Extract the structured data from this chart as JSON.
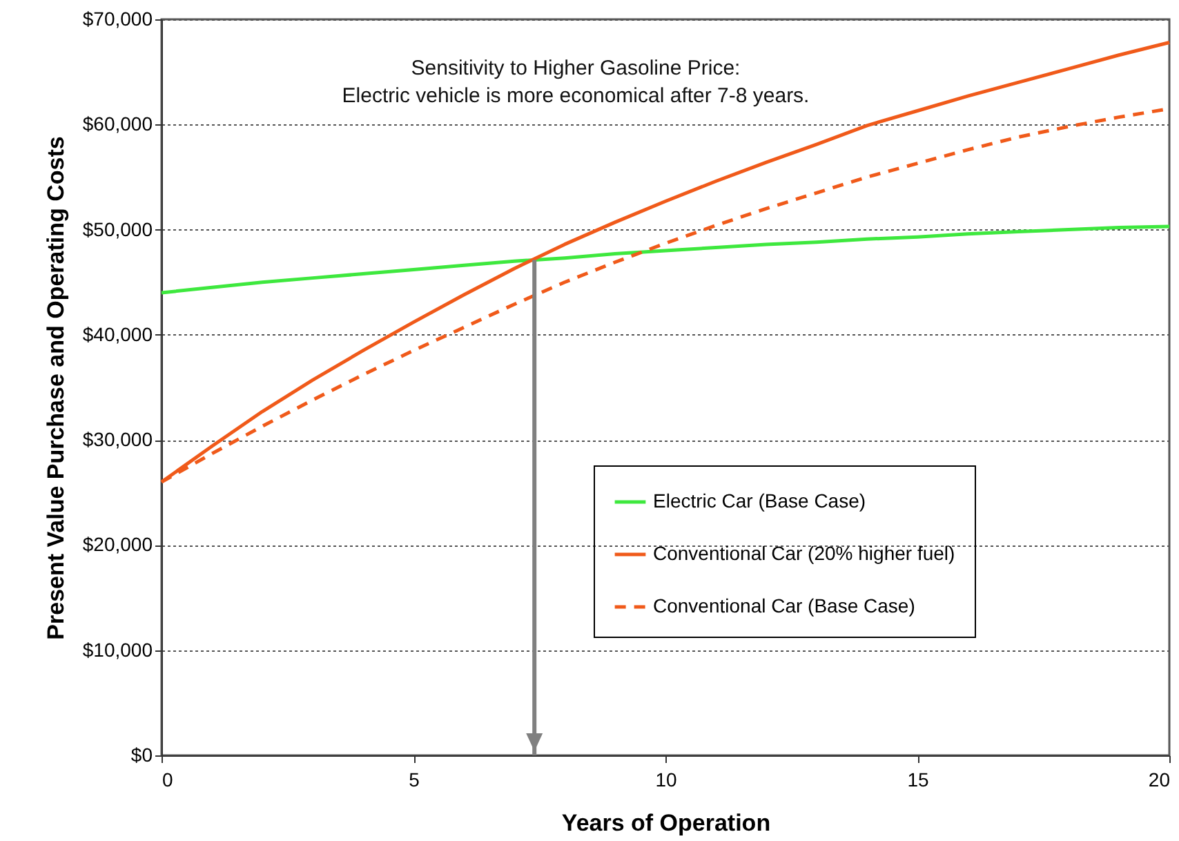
{
  "chart_data": {
    "type": "line",
    "xlabel": "Years of Operation",
    "ylabel": "Present Value Purchase and Operating Costs",
    "annotations": [
      "Sensitivity to Higher Gasoline Price:",
      "Electric vehicle is more economical after 7-8 years."
    ],
    "x": [
      0,
      1,
      2,
      3,
      4,
      5,
      6,
      7,
      8,
      9,
      10,
      11,
      12,
      13,
      14,
      15,
      16,
      17,
      18,
      19,
      20
    ],
    "series": [
      {
        "name": "Electric Car (Base Case)",
        "color": "#3ee83e",
        "line_style": "solid",
        "values": [
          44000,
          44500,
          45000,
          45400,
          45800,
          46200,
          46600,
          47000,
          47300,
          47700,
          48000,
          48300,
          48600,
          48800,
          49100,
          49300,
          49600,
          49800,
          50000,
          50200,
          50300
        ]
      },
      {
        "name": "Conventional Car (20% higher fuel)",
        "color": "#f05a1a",
        "line_style": "solid",
        "values": [
          26000,
          29400,
          32700,
          35700,
          38500,
          41200,
          43800,
          46300,
          48600,
          50700,
          52700,
          54600,
          56400,
          58100,
          59900,
          61300,
          62700,
          64000,
          65300,
          66600,
          67800
        ]
      },
      {
        "name": "Conventional Car (Base Case)",
        "color": "#f05a1a",
        "line_style": "dashed",
        "values": [
          26000,
          28700,
          31300,
          33800,
          36200,
          38500,
          40700,
          42900,
          45000,
          46900,
          48700,
          50400,
          52000,
          53500,
          55000,
          56300,
          57600,
          58800,
          59800,
          60700,
          61500
        ]
      }
    ],
    "xlim": [
      0,
      20
    ],
    "xticks": [
      0,
      5,
      10,
      15,
      20
    ],
    "ylim": [
      0,
      70000
    ],
    "yticks": [
      {
        "value": 0,
        "label": "$0"
      },
      {
        "value": 10000,
        "label": "$10,000"
      },
      {
        "value": 20000,
        "label": "$20,000"
      },
      {
        "value": 30000,
        "label": "$30,000"
      },
      {
        "value": 40000,
        "label": "$40,000"
      },
      {
        "value": 50000,
        "label": "$50,000"
      },
      {
        "value": 60000,
        "label": "$60,000"
      },
      {
        "value": 70000,
        "label": "$70,000"
      }
    ],
    "ref_lines": [
      {
        "axis": "x",
        "value": 7.4,
        "color": "#808080"
      }
    ],
    "grid": "y",
    "legend": "right"
  }
}
